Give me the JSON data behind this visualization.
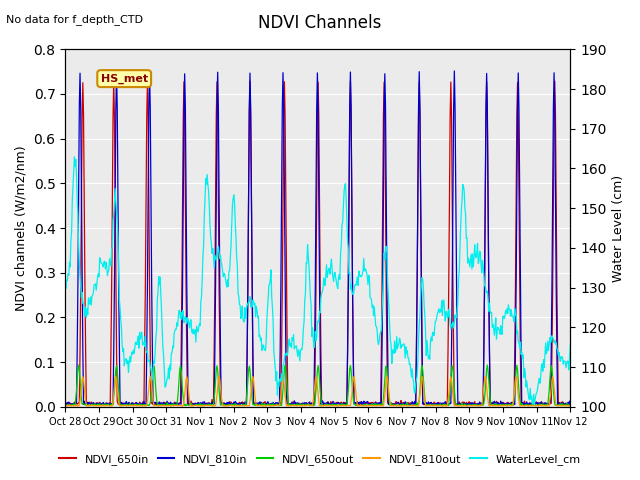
{
  "title": "NDVI Channels",
  "subtitle": "No data for f_depth_CTD",
  "ylabel_left": "NDVI channels (W/m2/nm)",
  "ylabel_right": "Water Level (cm)",
  "ylim_left": [
    0.0,
    0.8
  ],
  "ylim_right": [
    100,
    190
  ],
  "yticks_left": [
    0.0,
    0.1,
    0.2,
    0.3,
    0.4,
    0.5,
    0.6,
    0.7,
    0.8
  ],
  "yticks_right": [
    100,
    110,
    120,
    130,
    140,
    150,
    160,
    170,
    180,
    190
  ],
  "xtick_labels": [
    "Oct 28",
    "Oct 29",
    "Oct 30",
    "Oct 31",
    "Nov 1",
    "Nov 2",
    "Nov 3",
    "Nov 4",
    "Nov 5",
    "Nov 6",
    "Nov 7",
    "Nov 8",
    "Nov 9",
    "Nov 10",
    "Nov 11",
    "Nov 12"
  ],
  "colors": {
    "NDVI_650in": "#cc0000",
    "NDVI_810in": "#0000cc",
    "NDVI_650out": "#00cc00",
    "NDVI_810out": "#ff9900",
    "WaterLevel_cm": "#00eeee"
  },
  "legend_label_box": "HS_met",
  "plot_bg": "#ebebeb"
}
